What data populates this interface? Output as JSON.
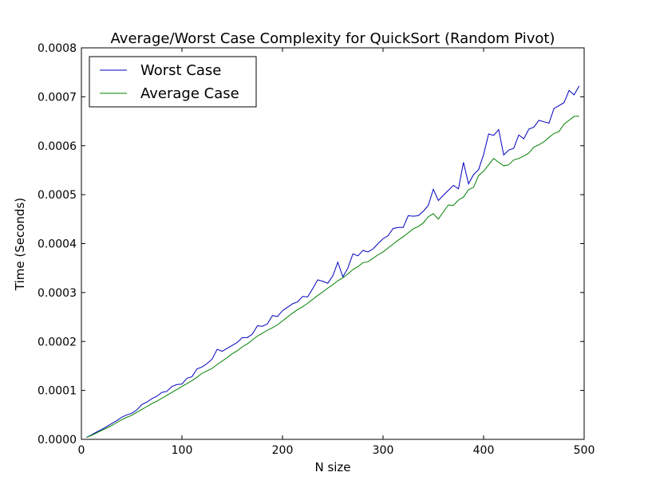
{
  "chart_data": {
    "type": "line",
    "title": "Average/Worst Case Complexity for QuickSort (Random Pivot)",
    "xlabel": "N size",
    "ylabel": "Time (Seconds)",
    "xlim": [
      0,
      500
    ],
    "ylim": [
      0,
      0.0008
    ],
    "xticks": [
      "0",
      "100",
      "200",
      "300",
      "400",
      "500"
    ],
    "yticks": [
      "0.0000",
      "0.0001",
      "0.0002",
      "0.0003",
      "0.0004",
      "0.0005",
      "0.0006",
      "0.0007",
      "0.0008"
    ],
    "grid": false,
    "legend_position": "top-left",
    "x": [
      5,
      10,
      15,
      20,
      25,
      30,
      35,
      40,
      45,
      50,
      55,
      60,
      65,
      70,
      75,
      80,
      85,
      90,
      95,
      100,
      105,
      110,
      115,
      120,
      125,
      130,
      135,
      140,
      145,
      150,
      155,
      160,
      165,
      170,
      175,
      180,
      185,
      190,
      195,
      200,
      205,
      210,
      215,
      220,
      225,
      230,
      235,
      240,
      245,
      250,
      255,
      260,
      265,
      270,
      275,
      280,
      285,
      290,
      295,
      300,
      305,
      310,
      315,
      320,
      325,
      330,
      335,
      340,
      345,
      350,
      355,
      360,
      365,
      370,
      375,
      380,
      385,
      390,
      395,
      400,
      405,
      410,
      415,
      420,
      425,
      430,
      435,
      440,
      445,
      450,
      455,
      460,
      465,
      470,
      475,
      480,
      485,
      490,
      495
    ],
    "series": [
      {
        "name": "Worst Case",
        "color": "#0000bf",
        "values": [
          4e-06,
          9e-06,
          1.5e-05,
          2e-05,
          2.6e-05,
          3.2e-05,
          3.8e-05,
          4.5e-05,
          5e-05,
          5.3e-05,
          6e-05,
          7.1e-05,
          7.6e-05,
          8.3e-05,
          8.8e-05,
          9.6e-05,
          9.8e-05,
          0.000108,
          0.000112,
          0.000113,
          0.000125,
          0.000128,
          0.000144,
          0.000148,
          0.000155,
          0.000164,
          0.000184,
          0.00018,
          0.000186,
          0.000192,
          0.000198,
          0.000208,
          0.000208,
          0.000215,
          0.000232,
          0.000231,
          0.000236,
          0.000253,
          0.000251,
          0.000263,
          0.00027,
          0.000277,
          0.000281,
          0.000292,
          0.000291,
          0.000308,
          0.000326,
          0.000323,
          0.000319,
          0.000334,
          0.000362,
          0.000332,
          0.00035,
          0.000379,
          0.000375,
          0.000386,
          0.000383,
          0.000389,
          0.0004,
          0.00041,
          0.000416,
          0.000431,
          0.000433,
          0.000433,
          0.000457,
          0.000456,
          0.000457,
          0.000466,
          0.000478,
          0.000511,
          0.000488,
          0.000499,
          0.000509,
          0.000519,
          0.000512,
          0.000566,
          0.000522,
          0.000541,
          0.000551,
          0.000582,
          0.000624,
          0.000621,
          0.000633,
          0.000581,
          0.000591,
          0.000595,
          0.000622,
          0.000614,
          0.000634,
          0.000638,
          0.000652,
          0.000649,
          0.000646,
          0.000676,
          0.000682,
          0.000688,
          0.000713,
          0.000704,
          0.000722
        ]
      },
      {
        "name": "Average Case",
        "color": "#008000",
        "values": [
          4e-06,
          8e-06,
          1.3e-05,
          1.8e-05,
          2.3e-05,
          2.8e-05,
          3.4e-05,
          4e-05,
          4.5e-05,
          4.9e-05,
          5.5e-05,
          6.1e-05,
          6.7e-05,
          7.3e-05,
          7.8e-05,
          8.4e-05,
          9e-05,
          9.6e-05,
          0.000102,
          0.000108,
          0.000114,
          0.00012,
          0.000127,
          0.000135,
          0.00014,
          0.000145,
          0.000153,
          0.00016,
          0.000167,
          0.000175,
          0.000181,
          0.000189,
          0.000195,
          0.000203,
          0.000211,
          0.000217,
          0.000223,
          0.000228,
          0.000234,
          0.000242,
          0.00025,
          0.000258,
          0.000265,
          0.000271,
          0.000278,
          0.000286,
          0.000294,
          0.000301,
          0.000309,
          0.000316,
          0.000324,
          0.00033,
          0.000338,
          0.000347,
          0.000353,
          0.000361,
          0.000363,
          0.00037,
          0.000377,
          0.000383,
          0.000391,
          0.000399,
          0.000407,
          0.000414,
          0.000422,
          0.00043,
          0.000435,
          0.000442,
          0.000455,
          0.000461,
          0.00045,
          0.000465,
          0.000479,
          0.000478,
          0.000489,
          0.000495,
          0.00051,
          0.000515,
          0.000539,
          0.000548,
          0.000561,
          0.000574,
          0.000566,
          0.000559,
          0.000561,
          0.000571,
          0.000574,
          0.000579,
          0.000585,
          0.000597,
          0.000602,
          0.000608,
          0.000617,
          0.000625,
          0.000629,
          0.000644,
          0.000652,
          0.00066,
          0.00066
        ]
      }
    ]
  }
}
